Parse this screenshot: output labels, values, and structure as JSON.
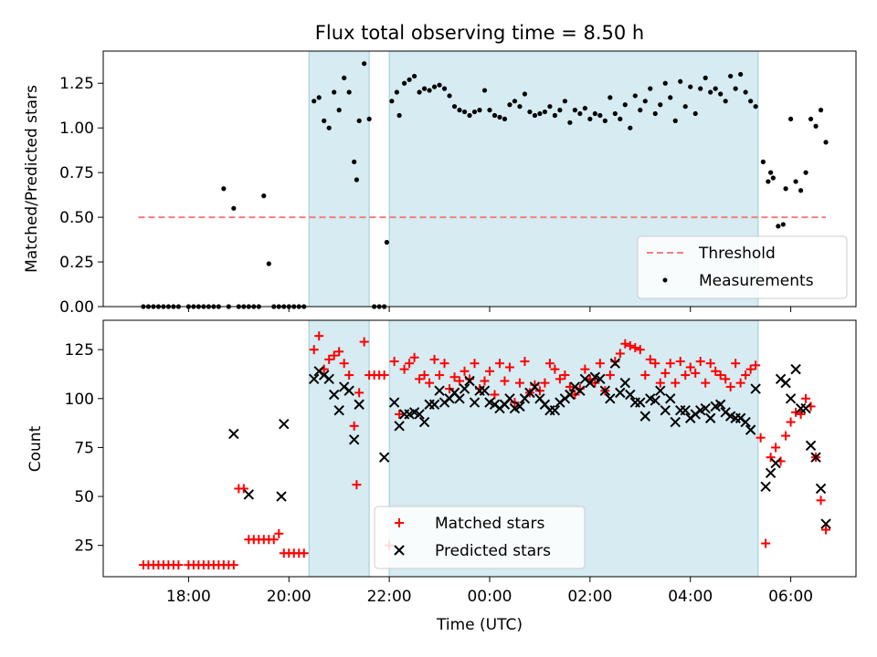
{
  "chart_data": [
    {
      "type": "scatter",
      "title": "Flux total observing time = 8.50 h",
      "xlabel": "",
      "ylabel": "Matched/Predicted stars",
      "xlim": [
        16.3,
        31.3
      ],
      "ylim": [
        0,
        1.43
      ],
      "yticks": [
        0.0,
        0.25,
        0.5,
        0.75,
        1.0,
        1.25
      ],
      "ytick_labels": [
        "0.00",
        "0.25",
        "0.50",
        "0.75",
        "1.00",
        "1.25"
      ],
      "shaded_spans": [
        [
          20.4,
          21.6
        ],
        [
          22.0,
          29.35
        ]
      ],
      "threshold": {
        "name": "Threshold",
        "value": 0.5,
        "x_start": 17.0,
        "x_end": 30.7,
        "color": "#f08080"
      },
      "legend": {
        "position": "lower-right",
        "entries": [
          "Threshold",
          "Measurements"
        ]
      },
      "series": [
        {
          "name": "Measurements",
          "color": "#000000",
          "x": [
            17.1,
            17.2,
            17.3,
            17.4,
            17.5,
            17.6,
            17.7,
            17.8,
            18.0,
            18.1,
            18.2,
            18.3,
            18.4,
            18.5,
            18.6,
            18.7,
            18.8,
            18.9,
            19.0,
            19.1,
            19.2,
            19.3,
            19.4,
            19.5,
            19.6,
            19.7,
            19.8,
            19.9,
            20.0,
            20.1,
            20.2,
            20.3,
            20.5,
            20.6,
            20.7,
            20.8,
            20.9,
            21.0,
            21.1,
            21.2,
            21.3,
            21.35,
            21.4,
            21.5,
            21.6,
            21.7,
            21.8,
            21.9,
            21.95,
            22.05,
            22.15,
            22.2,
            22.3,
            22.4,
            22.5,
            22.6,
            22.7,
            22.8,
            22.9,
            23.0,
            23.1,
            23.2,
            23.3,
            23.4,
            23.5,
            23.6,
            23.7,
            23.8,
            23.9,
            24.0,
            24.1,
            24.2,
            24.3,
            24.4,
            24.5,
            24.6,
            24.7,
            24.8,
            24.9,
            25.0,
            25.1,
            25.2,
            25.3,
            25.4,
            25.5,
            25.6,
            25.7,
            25.8,
            25.9,
            26.0,
            26.1,
            26.2,
            26.3,
            26.4,
            26.5,
            26.6,
            26.7,
            26.8,
            26.9,
            27.0,
            27.1,
            27.2,
            27.3,
            27.4,
            27.5,
            27.6,
            27.7,
            27.8,
            27.9,
            28.0,
            28.1,
            28.2,
            28.3,
            28.4,
            28.5,
            28.6,
            28.7,
            28.8,
            28.9,
            29.0,
            29.1,
            29.2,
            29.3,
            29.45,
            29.55,
            29.6,
            29.65,
            29.75,
            29.85,
            29.9,
            30.0,
            30.1,
            30.2,
            30.3,
            30.4,
            30.5,
            30.6,
            30.7
          ],
          "y": [
            0,
            0,
            0,
            0,
            0,
            0,
            0,
            0,
            0,
            0,
            0,
            0,
            0,
            0,
            0,
            0.66,
            0,
            0.55,
            0,
            0,
            0,
            0,
            0,
            0.62,
            0.24,
            0,
            0,
            0,
            0,
            0,
            0,
            0,
            1.15,
            1.17,
            1.04,
            1.0,
            1.2,
            1.1,
            1.28,
            1.2,
            0.81,
            0.71,
            1.04,
            1.36,
            1.05,
            0,
            0,
            0,
            0.36,
            1.15,
            1.2,
            1.07,
            1.25,
            1.27,
            1.29,
            1.2,
            1.22,
            1.21,
            1.23,
            1.24,
            1.22,
            1.18,
            1.12,
            1.1,
            1.09,
            1.07,
            1.09,
            1.1,
            1.21,
            1.1,
            1.07,
            1.06,
            1.05,
            1.13,
            1.15,
            1.12,
            1.19,
            1.09,
            1.07,
            1.08,
            1.09,
            1.12,
            1.07,
            1.1,
            1.15,
            1.03,
            1.1,
            1.08,
            1.11,
            1.05,
            1.08,
            1.07,
            1.04,
            1.17,
            1.08,
            1.05,
            1.13,
            1.0,
            1.18,
            1.1,
            1.15,
            1.22,
            1.08,
            1.13,
            1.25,
            1.17,
            1.04,
            1.26,
            1.12,
            1.23,
            1.08,
            1.22,
            1.28,
            1.2,
            1.22,
            1.19,
            1.15,
            1.29,
            1.22,
            1.3,
            1.2,
            1.15,
            1.12,
            0.81,
            0.7,
            0.75,
            0.72,
            0.45,
            0.46,
            0.66,
            1.05,
            0.7,
            0.65,
            0.75,
            1.05,
            1.01,
            1.1,
            0.92
          ],
          "marker": "dot"
        }
      ]
    },
    {
      "type": "scatter",
      "title": "",
      "xlabel": "Time (UTC)",
      "ylabel": "Count",
      "xlim": [
        16.3,
        31.3
      ],
      "ylim": [
        9,
        140
      ],
      "yticks": [
        25,
        50,
        75,
        100,
        125
      ],
      "ytick_labels": [
        "25",
        "50",
        "75",
        "100",
        "125"
      ],
      "xticks": [
        18,
        20,
        22,
        24,
        26,
        28,
        30
      ],
      "xtick_labels": [
        "18:00",
        "20:00",
        "22:00",
        "00:00",
        "02:00",
        "04:00",
        "06:00"
      ],
      "shaded_spans": [
        [
          20.4,
          21.6
        ],
        [
          22.0,
          29.35
        ]
      ],
      "legend": {
        "position": "lower-center",
        "entries": [
          "Matched stars",
          "Predicted stars"
        ]
      },
      "series": [
        {
          "name": "Matched stars",
          "color": "#ff0000",
          "marker": "plus",
          "x": [
            17.1,
            17.2,
            17.3,
            17.4,
            17.5,
            17.6,
            17.7,
            17.8,
            18.0,
            18.1,
            18.2,
            18.3,
            18.4,
            18.5,
            18.6,
            18.7,
            18.8,
            18.9,
            19.0,
            19.1,
            19.2,
            19.3,
            19.4,
            19.5,
            19.6,
            19.7,
            19.8,
            19.9,
            20.0,
            20.1,
            20.2,
            20.3,
            20.5,
            20.6,
            20.7,
            20.8,
            20.9,
            21.0,
            21.1,
            21.2,
            21.3,
            21.35,
            21.4,
            21.5,
            21.6,
            21.7,
            21.8,
            21.9,
            22.0,
            22.1,
            22.2,
            22.3,
            22.4,
            22.5,
            22.6,
            22.7,
            22.8,
            22.9,
            23.0,
            23.1,
            23.2,
            23.3,
            23.4,
            23.5,
            23.6,
            23.7,
            23.8,
            23.9,
            24.0,
            24.1,
            24.2,
            24.3,
            24.4,
            24.5,
            24.6,
            24.7,
            24.8,
            24.9,
            25.0,
            25.1,
            25.2,
            25.3,
            25.4,
            25.5,
            25.6,
            25.7,
            25.8,
            25.9,
            26.0,
            26.1,
            26.2,
            26.3,
            26.4,
            26.5,
            26.6,
            26.7,
            26.8,
            26.9,
            27.0,
            27.1,
            27.2,
            27.3,
            27.4,
            27.5,
            27.6,
            27.7,
            27.8,
            27.9,
            28.0,
            28.1,
            28.2,
            28.3,
            28.4,
            28.5,
            28.6,
            28.7,
            28.8,
            28.9,
            29.0,
            29.1,
            29.2,
            29.3,
            29.4,
            29.5,
            29.6,
            29.7,
            29.8,
            29.9,
            30.0,
            30.1,
            30.2,
            30.3,
            30.4,
            30.5,
            30.6,
            30.7
          ],
          "y": [
            15,
            15,
            15,
            15,
            15,
            15,
            15,
            15,
            15,
            15,
            15,
            15,
            15,
            15,
            15,
            15,
            15,
            15,
            54,
            54,
            28,
            28,
            28,
            28,
            28,
            28,
            31,
            21,
            21,
            21,
            21,
            21,
            125,
            132,
            115,
            120,
            122,
            124,
            118,
            112,
            86,
            56,
            103,
            129,
            112,
            112,
            112,
            112,
            25,
            119,
            92,
            115,
            118,
            121,
            110,
            112,
            108,
            120,
            112,
            118,
            105,
            111,
            109,
            114,
            110,
            118,
            105,
            109,
            114,
            102,
            118,
            109,
            116,
            98,
            108,
            119,
            103,
            107,
            104,
            108,
            118,
            115,
            110,
            112,
            106,
            102,
            105,
            115,
            110,
            108,
            118,
            104,
            112,
            119,
            123,
            128,
            127,
            126,
            125,
            112,
            120,
            118,
            108,
            113,
            118,
            108,
            119,
            112,
            116,
            113,
            119,
            108,
            118,
            114,
            112,
            110,
            106,
            118,
            108,
            112,
            115,
            117,
            80,
            26,
            70,
            75,
            68,
            81,
            88,
            93,
            92,
            100,
            96,
            70,
            48,
            33
          ]
        },
        {
          "name": "Predicted stars",
          "color": "#000000",
          "marker": "x",
          "x": [
            18.9,
            19.2,
            19.9,
            19.85,
            20.5,
            20.6,
            20.7,
            20.8,
            20.9,
            21.0,
            21.1,
            21.2,
            21.3,
            21.4,
            21.9,
            22.1,
            22.2,
            22.3,
            22.4,
            22.5,
            22.6,
            22.7,
            22.8,
            22.9,
            23.0,
            23.1,
            23.2,
            23.3,
            23.4,
            23.5,
            23.6,
            23.7,
            23.8,
            23.9,
            24.0,
            24.1,
            24.2,
            24.3,
            24.4,
            24.5,
            24.6,
            24.7,
            24.8,
            24.9,
            25.0,
            25.1,
            25.2,
            25.3,
            25.4,
            25.5,
            25.6,
            25.7,
            25.8,
            25.9,
            26.0,
            26.1,
            26.2,
            26.3,
            26.4,
            26.5,
            26.6,
            26.7,
            26.8,
            26.9,
            27.0,
            27.1,
            27.2,
            27.3,
            27.4,
            27.5,
            27.6,
            27.7,
            27.8,
            27.9,
            28.0,
            28.1,
            28.2,
            28.3,
            28.4,
            28.5,
            28.6,
            28.7,
            28.8,
            28.9,
            29.0,
            29.1,
            29.2,
            29.3,
            29.5,
            29.6,
            29.7,
            29.8,
            29.9,
            30.0,
            30.1,
            30.2,
            30.3,
            30.4,
            30.5,
            30.6,
            30.7
          ],
          "y": [
            82,
            51,
            87,
            50,
            110,
            114,
            112,
            110,
            102,
            94,
            106,
            104,
            79,
            97,
            70,
            98,
            86,
            92,
            92,
            93,
            92,
            88,
            97,
            97,
            104,
            98,
            100,
            103,
            100,
            105,
            109,
            98,
            104,
            104,
            98,
            97,
            95,
            97,
            100,
            95,
            96,
            100,
            103,
            106,
            100,
            97,
            94,
            94,
            98,
            100,
            102,
            106,
            104,
            110,
            108,
            111,
            110,
            104,
            100,
            118,
            103,
            108,
            102,
            98,
            98,
            91,
            100,
            99,
            104,
            94,
            100,
            88,
            94,
            94,
            90,
            92,
            94,
            95,
            90,
            96,
            97,
            93,
            91,
            90,
            90,
            88,
            84,
            105,
            55,
            62,
            67,
            110,
            108,
            100,
            115,
            95,
            95,
            76,
            70,
            54,
            36
          ]
        }
      ]
    }
  ]
}
